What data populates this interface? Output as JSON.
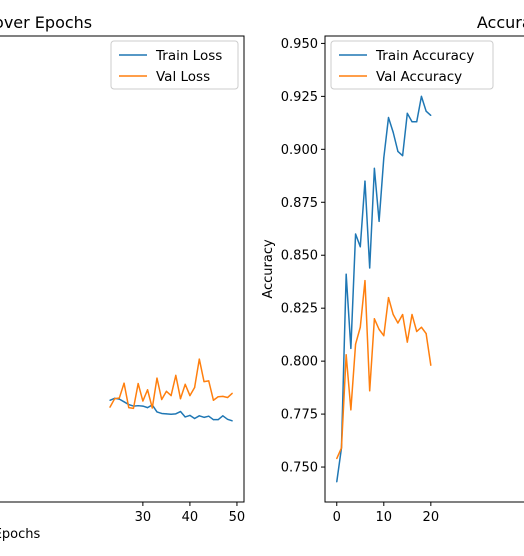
{
  "colors": {
    "train": "#1f77b4",
    "val": "#ff7f0e"
  },
  "chart_data": [
    {
      "type": "line",
      "title": "Loss over Epochs",
      "xlabel": "Epochs",
      "ylabel": "",
      "xlim": [
        -2.5,
        51.5
      ],
      "ylim": [
        0.2,
        1.4
      ],
      "xticks": [
        30,
        40,
        50
      ],
      "legend": "top-right",
      "grid": false,
      "x": [
        0,
        1,
        2,
        3,
        4,
        5,
        6,
        7,
        8,
        9,
        10,
        11,
        12,
        13,
        14,
        15,
        16,
        17,
        18,
        19,
        20,
        21,
        22,
        23,
        24,
        25,
        26,
        27,
        28,
        29,
        30,
        31,
        32,
        33,
        34,
        35,
        36,
        37,
        38,
        39,
        40,
        41,
        42,
        43,
        44,
        45,
        46,
        47,
        48,
        49
      ],
      "series": [
        {
          "name": "Train Loss",
          "values": [
            null,
            null,
            null,
            null,
            null,
            null,
            null,
            null,
            null,
            null,
            null,
            null,
            null,
            null,
            null,
            null,
            null,
            null,
            null,
            null,
            null,
            null,
            null,
            0.462,
            0.467,
            0.465,
            0.458,
            0.451,
            0.447,
            0.448,
            0.447,
            0.443,
            0.45,
            0.432,
            0.428,
            0.427,
            0.426,
            0.427,
            0.433,
            0.419,
            0.423,
            0.415,
            0.422,
            0.418,
            0.421,
            0.412,
            0.412,
            0.422,
            0.413,
            0.409
          ]
        },
        {
          "name": "Val Loss",
          "values": [
            null,
            null,
            null,
            null,
            null,
            null,
            null,
            null,
            null,
            null,
            null,
            null,
            null,
            null,
            null,
            null,
            null,
            null,
            null,
            null,
            null,
            null,
            null,
            0.444,
            0.466,
            0.468,
            0.506,
            0.443,
            0.441,
            0.505,
            0.46,
            0.489,
            0.442,
            0.519,
            0.464,
            0.485,
            0.474,
            0.526,
            0.466,
            0.503,
            0.474,
            0.495,
            0.568,
            0.51,
            0.512,
            0.462,
            0.471,
            0.472,
            0.469,
            0.48
          ]
        }
      ]
    },
    {
      "type": "line",
      "title": "Accuracy over Epochs",
      "xlabel": "",
      "ylabel": "Accuracy",
      "xlim": [
        -2.5,
        51.5
      ],
      "ylim": [
        0.7335,
        0.9535
      ],
      "xticks": [
        0,
        10,
        20
      ],
      "yticks": [
        "0.750",
        "0.775",
        "0.800",
        "0.825",
        "0.850",
        "0.875",
        "0.900",
        "0.925",
        "0.950"
      ],
      "legend": "top-left",
      "grid": false,
      "x": [
        0,
        1,
        2,
        3,
        4,
        5,
        6,
        7,
        8,
        9,
        10,
        11,
        12,
        13,
        14,
        15,
        16,
        17,
        18,
        19,
        20
      ],
      "series": [
        {
          "name": "Train Accuracy",
          "values": [
            0.743,
            0.759,
            0.841,
            0.806,
            0.86,
            0.854,
            0.885,
            0.844,
            0.891,
            0.866,
            0.896,
            0.915,
            0.908,
            0.899,
            0.897,
            0.917,
            0.913,
            0.913,
            0.925,
            0.918,
            0.916
          ]
        },
        {
          "name": "Val Accuracy",
          "values": [
            0.754,
            0.759,
            0.803,
            0.777,
            0.808,
            0.816,
            0.838,
            0.786,
            0.82,
            0.815,
            0.812,
            0.83,
            0.822,
            0.818,
            0.822,
            0.809,
            0.822,
            0.814,
            0.816,
            0.813,
            0.798
          ]
        }
      ]
    }
  ]
}
